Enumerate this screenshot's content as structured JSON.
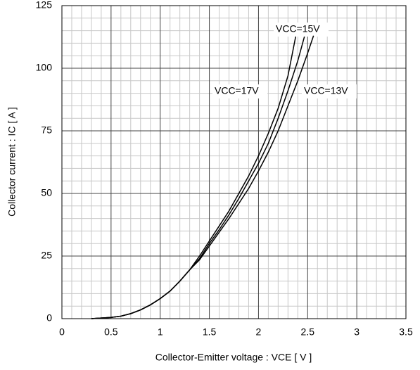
{
  "chart_data": {
    "type": "line",
    "xlabel": "Collector-Emitter voltage  :  VCE [ V ]",
    "ylabel": "Collector current : IC [ A ]",
    "xlim": [
      0,
      3.5
    ],
    "ylim": [
      0,
      125
    ],
    "xticks": [
      0,
      0.5,
      1,
      1.5,
      2,
      2.5,
      3,
      3.5
    ],
    "yticks": [
      0,
      25,
      50,
      75,
      100,
      125
    ],
    "grid": true,
    "minor_divisions": 5,
    "series": [
      {
        "name": "VCC=17V",
        "color": "#000000",
        "x": [
          0.3,
          0.5,
          0.6,
          0.7,
          0.8,
          0.9,
          1.0,
          1.1,
          1.2,
          1.3,
          1.4,
          1.5,
          1.6,
          1.7,
          1.8,
          1.9,
          2.0,
          2.1,
          2.2,
          2.3,
          2.38
        ],
        "values": [
          0,
          0.5,
          1,
          2,
          3.5,
          5.5,
          8,
          11,
          15,
          19.5,
          25,
          31,
          37,
          43,
          50,
          57,
          65,
          74,
          84,
          97,
          113
        ]
      },
      {
        "name": "VCC=15V",
        "color": "#000000",
        "x": [
          0.3,
          0.5,
          0.6,
          0.7,
          0.8,
          0.9,
          1.0,
          1.1,
          1.2,
          1.3,
          1.4,
          1.5,
          1.6,
          1.7,
          1.8,
          1.9,
          2.0,
          2.1,
          2.2,
          2.3,
          2.4,
          2.47
        ],
        "values": [
          0,
          0.5,
          1,
          2,
          3.5,
          5.5,
          8,
          11,
          15,
          19.5,
          24,
          30,
          35.5,
          41.5,
          48,
          55,
          62,
          70,
          80,
          91,
          103,
          113
        ]
      },
      {
        "name": "VCC=13V",
        "color": "#000000",
        "x": [
          0.3,
          0.5,
          0.6,
          0.7,
          0.8,
          0.9,
          1.0,
          1.1,
          1.2,
          1.3,
          1.4,
          1.5,
          1.6,
          1.7,
          1.8,
          1.9,
          2.0,
          2.1,
          2.2,
          2.3,
          2.4,
          2.5,
          2.56
        ],
        "values": [
          0,
          0.5,
          1,
          2,
          3.5,
          5.5,
          8,
          11,
          15,
          19.5,
          23.5,
          29,
          34.5,
          40,
          46,
          52,
          59,
          66.5,
          75,
          85,
          95,
          106,
          113
        ]
      }
    ]
  }
}
